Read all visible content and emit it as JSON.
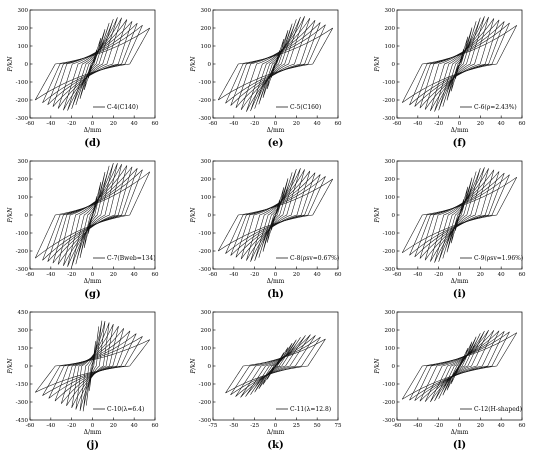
{
  "chart_data": [
    {
      "type": "line",
      "subfigure": "(d)",
      "legend": "C-4(C140)",
      "xlabel": "Δ/mm",
      "ylabel": "P/kN",
      "xlim": [
        -60,
        60
      ],
      "ylim": [
        -300,
        300
      ],
      "xticks": [
        "-60",
        "-40",
        "-20",
        "0",
        "20",
        "40",
        "60"
      ],
      "yticks": [
        "300",
        "200",
        "100",
        "0",
        "-100",
        "-200",
        "-300"
      ],
      "peak_load": 260,
      "peak_disp": 26,
      "max_disp": 55,
      "end_load": 200,
      "cycles": [
        4,
        8,
        12,
        16,
        20,
        24,
        28,
        33,
        38,
        43,
        48,
        55
      ]
    },
    {
      "type": "line",
      "subfigure": "(e)",
      "legend": "C-5(C160)",
      "xlabel": "Δ/mm",
      "ylabel": "P/kN",
      "xlim": [
        -60,
        60
      ],
      "ylim": [
        -300,
        300
      ],
      "xticks": [
        "-60",
        "-40",
        "-20",
        "0",
        "20",
        "40",
        "60"
      ],
      "yticks": [
        "300",
        "200",
        "100",
        "0",
        "-100",
        "-200",
        "-300"
      ],
      "peak_load": 265,
      "peak_disp": 28,
      "max_disp": 55,
      "end_load": 200,
      "cycles": [
        4,
        8,
        12,
        16,
        20,
        24,
        28,
        33,
        38,
        43,
        48,
        55
      ]
    },
    {
      "type": "line",
      "subfigure": "(f)",
      "legend": "C-6(ρ=2.43%)",
      "xlabel": "Δ/mm",
      "ylabel": "P/kN",
      "xlim": [
        -60,
        60
      ],
      "ylim": [
        -300,
        300
      ],
      "xticks": [
        "-60",
        "-40",
        "-20",
        "0",
        "20",
        "40",
        "60"
      ],
      "yticks": [
        "300",
        "200",
        "100",
        "0",
        "-100",
        "-200",
        "-300"
      ],
      "peak_load": 265,
      "peak_disp": 25,
      "max_disp": 55,
      "end_load": 215,
      "cycles": [
        4,
        8,
        12,
        16,
        20,
        24,
        28,
        33,
        38,
        43,
        48,
        55
      ]
    },
    {
      "type": "line",
      "subfigure": "(g)",
      "legend": "C-7(Bweb=134)",
      "xlabel": "Δ/mm",
      "ylabel": "P/kN",
      "xlim": [
        -60,
        60
      ],
      "ylim": [
        -300,
        300
      ],
      "xticks": [
        "-60",
        "-40",
        "-20",
        "0",
        "20",
        "40",
        "60"
      ],
      "yticks": [
        "300",
        "200",
        "100",
        "0",
        "-100",
        "-200",
        "-300"
      ],
      "peak_load": 290,
      "peak_disp": 22,
      "max_disp": 55,
      "end_load": 240,
      "cycles": [
        4,
        8,
        12,
        16,
        20,
        24,
        28,
        33,
        38,
        43,
        48,
        55
      ]
    },
    {
      "type": "line",
      "subfigure": "(h)",
      "legend": "C-8(ρsv=0.67%)",
      "xlabel": "Δ/mm",
      "ylabel": "P/kN",
      "xlim": [
        -60,
        60
      ],
      "ylim": [
        -300,
        300
      ],
      "xticks": [
        "-60",
        "-40",
        "-20",
        "0",
        "20",
        "40",
        "60"
      ],
      "yticks": [
        "300",
        "200",
        "100",
        "0",
        "-100",
        "-200",
        "-300"
      ],
      "peak_load": 260,
      "peak_disp": 24,
      "max_disp": 55,
      "end_load": 200,
      "cycles": [
        4,
        8,
        12,
        16,
        20,
        24,
        28,
        33,
        38,
        43,
        48,
        55
      ]
    },
    {
      "type": "line",
      "subfigure": "(i)",
      "legend": "C-9(ρsv=1.96%)",
      "xlabel": "Δ/mm",
      "ylabel": "P/kN",
      "xlim": [
        -60,
        60
      ],
      "ylim": [
        -300,
        300
      ],
      "xticks": [
        "-60",
        "-40",
        "-20",
        "0",
        "20",
        "40",
        "60"
      ],
      "yticks": [
        "300",
        "200",
        "100",
        "0",
        "-100",
        "-200",
        "-300"
      ],
      "peak_load": 265,
      "peak_disp": 24,
      "max_disp": 55,
      "end_load": 210,
      "cycles": [
        4,
        8,
        12,
        16,
        20,
        24,
        28,
        33,
        38,
        43,
        48,
        55
      ]
    },
    {
      "type": "line",
      "subfigure": "(j)",
      "legend": "C-10(λ=6.4)",
      "xlabel": "Δ/mm",
      "ylabel": "P/kN",
      "xlim": [
        -60,
        60
      ],
      "ylim": [
        -450,
        450
      ],
      "xticks": [
        "-60",
        "-40",
        "-20",
        "0",
        "20",
        "40",
        "60"
      ],
      "yticks": [
        "450",
        "300",
        "150",
        "0",
        "-150",
        "-300",
        "-450"
      ],
      "peak_load": 380,
      "peak_disp": 10,
      "max_disp": 55,
      "end_load": 220,
      "cycles": [
        3,
        6,
        9,
        12,
        16,
        20,
        25,
        30,
        36,
        42,
        48,
        55
      ]
    },
    {
      "type": "line",
      "subfigure": "(k)",
      "legend": "C-11(λ=12.8)",
      "xlabel": "Δ/mm",
      "ylabel": "P/kN",
      "xlim": [
        -75,
        75
      ],
      "ylim": [
        -300,
        300
      ],
      "xticks": [
        "-75",
        "-50",
        "-25",
        "0",
        "25",
        "50",
        "75"
      ],
      "yticks": [
        "300",
        "200",
        "100",
        "0",
        "-100",
        "-200",
        "-300"
      ],
      "peak_load": 175,
      "peak_disp": 45,
      "max_disp": 60,
      "end_load": 150,
      "cycles": [
        5,
        10,
        15,
        20,
        25,
        30,
        36,
        42,
        48,
        54,
        60
      ]
    },
    {
      "type": "line",
      "subfigure": "(l)",
      "legend": "C-12(H-shaped)",
      "xlabel": "Δ/mm",
      "ylabel": "P/kN",
      "xlim": [
        -60,
        60
      ],
      "ylim": [
        -300,
        300
      ],
      "xticks": [
        "-60",
        "-40",
        "-20",
        "0",
        "20",
        "40",
        "60"
      ],
      "yticks": [
        "300",
        "200",
        "100",
        "0",
        "-100",
        "-200",
        "-300"
      ],
      "peak_load": 200,
      "peak_disp": 30,
      "max_disp": 55,
      "end_load": 185,
      "cycles": [
        4,
        8,
        12,
        16,
        20,
        24,
        28,
        33,
        38,
        43,
        48,
        55
      ]
    }
  ]
}
